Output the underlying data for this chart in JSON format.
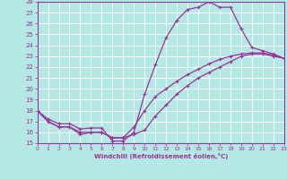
{
  "bg_color": "#b3e8e5",
  "grid_color": "#ffffff",
  "line_color": "#993399",
  "marker_color": "#993399",
  "xlabel": "Windchill (Refroidissement éolien,°C)",
  "xlabel_color": "#993399",
  "tick_color": "#993399",
  "ylim": [
    15,
    28
  ],
  "xlim": [
    0,
    23
  ],
  "yticks": [
    15,
    16,
    17,
    18,
    19,
    20,
    21,
    22,
    23,
    24,
    25,
    26,
    27,
    28
  ],
  "xticks": [
    0,
    1,
    2,
    3,
    4,
    5,
    6,
    7,
    8,
    9,
    10,
    11,
    12,
    13,
    14,
    15,
    16,
    17,
    18,
    19,
    20,
    21,
    22,
    23
  ],
  "line1_x": [
    0,
    1,
    2,
    3,
    4,
    5,
    6,
    7,
    8,
    9,
    10,
    11,
    12,
    13,
    14,
    15,
    16,
    17,
    18,
    19,
    20,
    21,
    22,
    23
  ],
  "line1_y": [
    18.0,
    17.2,
    16.8,
    16.8,
    16.3,
    16.4,
    16.4,
    15.2,
    15.2,
    16.0,
    19.5,
    22.2,
    24.7,
    26.3,
    27.3,
    27.5,
    28.0,
    27.5,
    27.5,
    25.5,
    23.8,
    23.5,
    23.2,
    22.8
  ],
  "line2_x": [
    0,
    1,
    2,
    3,
    4,
    5,
    6,
    7,
    8,
    9,
    10,
    11,
    12,
    13,
    14,
    15,
    16,
    17,
    18,
    19,
    20,
    21,
    22,
    23
  ],
  "line2_y": [
    18.0,
    17.0,
    16.5,
    16.5,
    16.0,
    16.0,
    16.0,
    15.5,
    15.5,
    16.5,
    18.0,
    19.3,
    20.0,
    20.7,
    21.3,
    21.8,
    22.3,
    22.7,
    23.0,
    23.2,
    23.3,
    23.3,
    23.1,
    22.8
  ],
  "line3_x": [
    0,
    1,
    2,
    3,
    4,
    5,
    6,
    7,
    8,
    9,
    10,
    11,
    12,
    13,
    14,
    15,
    16,
    17,
    18,
    19,
    20,
    21,
    22,
    23
  ],
  "line3_y": [
    18.0,
    17.0,
    16.5,
    16.5,
    15.8,
    16.0,
    16.0,
    15.5,
    15.5,
    15.8,
    16.2,
    17.5,
    18.5,
    19.5,
    20.3,
    21.0,
    21.5,
    22.0,
    22.5,
    23.0,
    23.2,
    23.2,
    23.0,
    22.8
  ]
}
